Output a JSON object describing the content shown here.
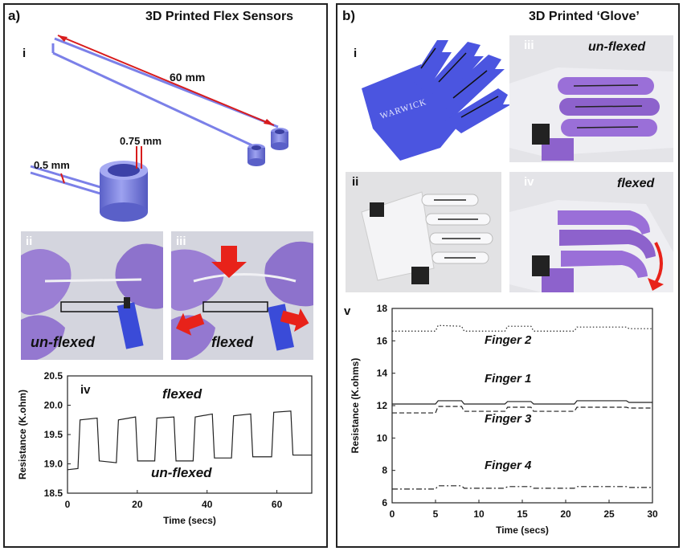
{
  "panel_a": {
    "label": "a)",
    "title": "3D Printed Flex Sensors",
    "sub_i": "i",
    "dim_60": "60 mm",
    "dim_075": "0.75 mm",
    "dim_05": "0.5 mm",
    "sub_ii": "ii",
    "sub_iii": "iii",
    "photo_ii_caption": "un-flexed",
    "photo_iii_caption": "flexed",
    "sub_iv": "iv"
  },
  "panel_b": {
    "label": "b)",
    "title": "3D Printed ‘Glove’",
    "sub_i": "i",
    "logo_text": "WARWICK",
    "sub_ii": "ii",
    "sub_iii": "iii",
    "photo_iii_caption": "un-flexed",
    "sub_iv": "iv",
    "photo_iv_caption": "flexed",
    "sub_v": "v"
  },
  "colors": {
    "sensor_blue": "#7b80e8",
    "glove_blue": "#4b55e0",
    "glove_purple": "#9a6fd8",
    "dimension_red": "#d81c1c",
    "arrow_red": "#e8221a"
  },
  "chart_data": [
    {
      "type": "line",
      "ylabel": "Resistance (K.ohm)",
      "xlabel": "Time (secs)",
      "xlim": [
        0,
        70
      ],
      "ylim": [
        18.5,
        20.5
      ],
      "xticks": [
        "0",
        "20",
        "40",
        "60"
      ],
      "yticks": [
        "18.5",
        "19.0",
        "19.5",
        "20.0",
        "20.5"
      ],
      "annotations": [
        "iv",
        "flexed",
        "un-flexed"
      ],
      "series": [
        {
          "x": [
            0,
            3,
            3.6,
            8.5,
            9.1,
            14,
            14.6,
            19.5,
            20.1,
            25,
            25.6,
            30.5,
            31.1,
            36,
            36.6,
            41.5,
            42.1,
            47,
            47.6,
            52.5,
            53.1,
            58.5,
            59.1,
            64,
            64.6,
            70
          ],
          "y": [
            18.9,
            18.92,
            19.75,
            19.78,
            19.05,
            19.02,
            19.75,
            19.8,
            19.05,
            19.05,
            19.78,
            19.8,
            19.05,
            19.05,
            19.8,
            19.85,
            19.1,
            19.1,
            19.82,
            19.85,
            19.12,
            19.12,
            19.88,
            19.9,
            19.15,
            19.15
          ]
        }
      ]
    },
    {
      "type": "line",
      "ylabel": "Resistance (K.ohms)",
      "xlabel": "Time (secs)",
      "xlim": [
        0,
        30
      ],
      "ylim": [
        6,
        18
      ],
      "xticks": [
        "0",
        "5",
        "10",
        "15",
        "20",
        "25",
        "30"
      ],
      "yticks": [
        "6",
        "8",
        "10",
        "12",
        "14",
        "16",
        "18"
      ],
      "series": [
        {
          "name": "Finger 2",
          "style": "dotted",
          "x": [
            0,
            5,
            5.3,
            8,
            8.3,
            13,
            13.3,
            16,
            16.3,
            21,
            21.3,
            27,
            27.3,
            30
          ],
          "y": [
            16.6,
            16.6,
            16.95,
            16.9,
            16.6,
            16.6,
            16.9,
            16.9,
            16.6,
            16.6,
            16.85,
            16.85,
            16.75,
            16.75
          ]
        },
        {
          "name": "Finger 1",
          "style": "solid",
          "x": [
            0,
            5,
            5.3,
            8,
            8.3,
            13,
            13.3,
            16,
            16.3,
            21,
            21.3,
            27,
            27.3,
            30
          ],
          "y": [
            12.1,
            12.1,
            12.3,
            12.3,
            12.1,
            12.1,
            12.25,
            12.25,
            12.1,
            12.1,
            12.3,
            12.3,
            12.2,
            12.2
          ]
        },
        {
          "name": "Finger 3",
          "style": "dashed",
          "x": [
            0,
            5,
            5.3,
            8,
            8.3,
            13,
            13.3,
            16,
            16.3,
            21,
            21.3,
            27,
            27.3,
            30
          ],
          "y": [
            11.55,
            11.55,
            11.95,
            11.95,
            11.65,
            11.65,
            11.9,
            11.9,
            11.65,
            11.65,
            11.9,
            11.9,
            11.85,
            11.85
          ]
        },
        {
          "name": "Finger 4",
          "style": "dashdot",
          "x": [
            0,
            5,
            5.3,
            8,
            8.3,
            13,
            13.3,
            16,
            16.3,
            21,
            21.3,
            27,
            27.3,
            30
          ],
          "y": [
            6.85,
            6.85,
            7.05,
            7.05,
            6.9,
            6.9,
            7.0,
            7.0,
            6.9,
            6.9,
            7.0,
            7.0,
            6.95,
            6.95
          ]
        }
      ]
    }
  ]
}
